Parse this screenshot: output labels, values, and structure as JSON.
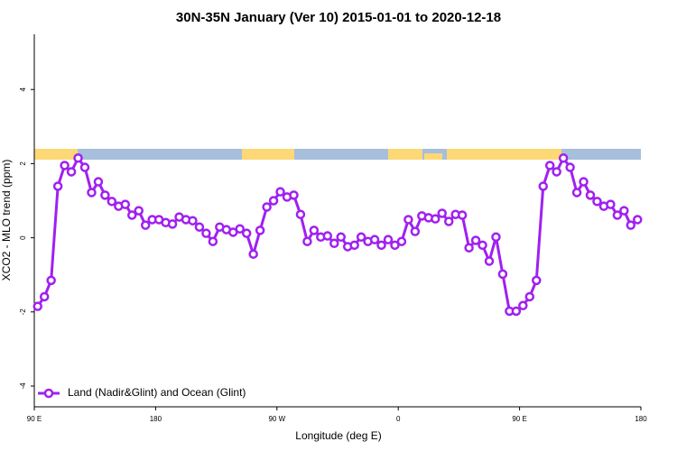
{
  "chart_data": {
    "type": "line",
    "title": "30N-35N January (Ver 10)   2015-01-01 to 2020-12-18",
    "x_label": "Longitude (deg E)",
    "y_label": "XCO2 - MLO trend (ppm)",
    "xlim": [
      90,
      540
    ],
    "xticks": [
      {
        "value": 90,
        "label": "90 E"
      },
      180,
      {
        "value": 270,
        "label": "90 W"
      },
      {
        "value": 360,
        "label": "0"
      },
      {
        "value": 450,
        "label": "90 E"
      },
      {
        "value": 540,
        "label": "180"
      }
    ],
    "ylim": [
      -4.56,
      5.49
    ],
    "yticks": [
      -4,
      -2,
      0,
      2,
      4
    ],
    "legend": "bottom-left",
    "series": [
      {
        "name": "Land (Nadir&Glint) and Ocean (Glint)",
        "color": "#a020f0",
        "x": [
          92.5,
          97.5,
          102.5,
          107.5,
          112.5,
          117.5,
          122.5,
          127.5,
          132.5,
          137.5,
          142.5,
          147.5,
          152.5,
          157.5,
          162.5,
          167.5,
          172.5,
          177.5,
          182.5,
          187.5,
          192.5,
          197.5,
          202.5,
          207.5,
          212.5,
          217.5,
          222.5,
          227.5,
          232.5,
          237.5,
          242.5,
          247.5,
          252.5,
          257.5,
          262.5,
          267.5,
          272.5,
          277.5,
          282.5,
          287.5,
          292.5,
          297.5,
          302.5,
          307.5,
          312.5,
          317.5,
          322.5,
          327.5,
          332.5,
          337.5,
          342.5,
          347.5,
          352.5,
          357.5,
          362.5,
          367.5,
          372.5,
          377.5,
          382.5,
          387.5,
          392.5,
          397.5,
          402.5,
          407.5,
          412.5,
          417.5,
          422.5,
          427.5,
          432.5,
          437.5,
          442.5,
          447.5,
          452.5,
          457.5,
          462.5,
          467.5,
          472.5,
          477.5,
          482.5,
          487.5,
          492.5,
          497.5,
          502.5,
          507.5,
          512.5,
          517.5,
          522.5,
          527.5,
          532.5,
          537.5
        ],
        "values": [
          -1.85,
          -1.59,
          -1.15,
          1.39,
          1.95,
          1.78,
          2.15,
          1.9,
          1.22,
          1.51,
          1.15,
          0.98,
          0.85,
          0.9,
          0.61,
          0.73,
          0.34,
          0.49,
          0.49,
          0.41,
          0.37,
          0.56,
          0.49,
          0.46,
          0.29,
          0.12,
          -0.1,
          0.29,
          0.22,
          0.15,
          0.24,
          0.12,
          -0.44,
          0.2,
          0.83,
          1.0,
          1.24,
          1.1,
          1.15,
          0.63,
          -0.1,
          0.2,
          0.02,
          0.05,
          -0.15,
          0.02,
          -0.24,
          -0.2,
          0.02,
          -0.1,
          -0.05,
          -0.2,
          -0.05,
          -0.2,
          -0.1,
          0.49,
          0.17,
          0.59,
          0.54,
          0.51,
          0.66,
          0.44,
          0.63,
          0.61,
          -0.27,
          -0.07,
          -0.2,
          -0.63,
          0.02,
          -0.98,
          -1.98,
          -1.98,
          -1.83,
          -1.59,
          -1.15,
          1.39,
          1.95,
          1.78,
          2.15,
          1.9,
          1.22,
          1.51,
          1.15,
          0.98,
          0.85,
          0.9,
          0.61,
          0.73,
          0.34,
          0.49
        ]
      }
    ]
  }
}
